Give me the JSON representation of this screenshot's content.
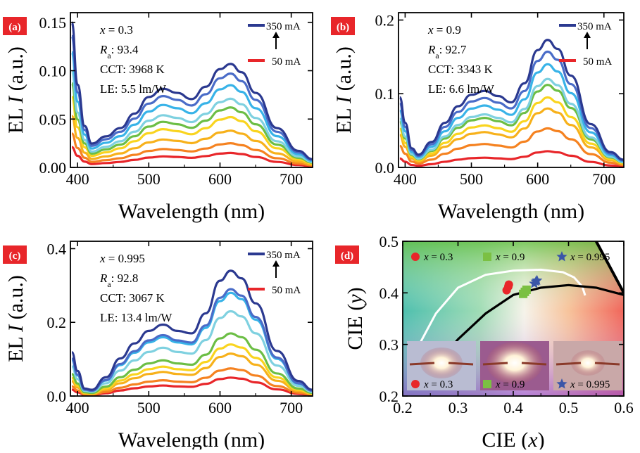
{
  "chart_data": [
    {
      "id": "a",
      "type": "line",
      "panel_label": "(a)",
      "xlabel": "Wavelength (nm)",
      "ylabel_prefix": "EL ",
      "ylabel_var": "I",
      "ylabel_suffix": " (a.u.)",
      "xlim": [
        390,
        730
      ],
      "ylim": [
        0,
        0.16
      ],
      "xticks": [
        400,
        500,
        600,
        700
      ],
      "yticks": [
        0.0,
        0.05,
        0.1,
        0.15
      ],
      "ytick_labels": [
        "0.00",
        "0.05",
        "0.10",
        "0.15"
      ],
      "annotations": {
        "x_var": "x",
        "x_val": " = 0.3",
        "ra_label": "R",
        "ra_sub": "a",
        "ra_val": ": 93.4",
        "cct": "CCT: 3968 K",
        "le": "LE: 5.5 lm/W"
      },
      "legend": {
        "high": "350 mA",
        "low": "50 mA",
        "high_color": "#2b3990",
        "low_color": "#e8262a"
      },
      "x": [
        392,
        400,
        410,
        420,
        440,
        460,
        480,
        500,
        520,
        540,
        560,
        580,
        600,
        615,
        630,
        650,
        680,
        710,
        730
      ],
      "profile": [
        1.4,
        0.8,
        0.4,
        0.23,
        0.3,
        0.38,
        0.52,
        0.68,
        0.76,
        0.72,
        0.66,
        0.78,
        0.95,
        1.0,
        0.92,
        0.72,
        0.38,
        0.16,
        0.08
      ],
      "peak_values": [
        0.015,
        0.025,
        0.038,
        0.052,
        0.062,
        0.071,
        0.085,
        0.097,
        0.107
      ],
      "colors": [
        "#e8262a",
        "#f58220",
        "#f7b11b",
        "#f9d41f",
        "#6cbe45",
        "#7fd1e0",
        "#38b3e8",
        "#4a6cc8",
        "#2b3990"
      ]
    },
    {
      "id": "b",
      "type": "line",
      "panel_label": "(b)",
      "xlabel": "Wavelength (nm)",
      "ylabel_prefix": "EL ",
      "ylabel_var": "I",
      "ylabel_suffix": " (a.u.)",
      "xlim": [
        390,
        730
      ],
      "ylim": [
        0,
        0.21
      ],
      "xticks": [
        400,
        500,
        600,
        700
      ],
      "yticks": [
        0.0,
        0.1,
        0.2
      ],
      "ytick_labels": [
        "0.0",
        "0.1",
        "0.2"
      ],
      "annotations": {
        "x_var": "x",
        "x_val": " = 0.9",
        "ra_label": "R",
        "ra_sub": "a",
        "ra_val": ": 92.7",
        "cct": "CCT: 3343 K",
        "le": "LE: 6.6 lm/W"
      },
      "legend": {
        "high": "350 mA",
        "low": "50 mA",
        "high_color": "#2b3990",
        "low_color": "#e8262a"
      },
      "x": [
        392,
        400,
        410,
        420,
        440,
        460,
        480,
        500,
        520,
        540,
        560,
        580,
        600,
        615,
        630,
        650,
        680,
        710,
        730
      ],
      "profile": [
        0.55,
        0.35,
        0.15,
        0.1,
        0.2,
        0.35,
        0.48,
        0.57,
        0.6,
        0.56,
        0.51,
        0.66,
        0.92,
        1.0,
        0.93,
        0.72,
        0.34,
        0.12,
        0.06
      ],
      "peak_values": [
        0.022,
        0.053,
        0.08,
        0.095,
        0.112,
        0.12,
        0.14,
        0.157,
        0.173
      ],
      "colors": [
        "#e8262a",
        "#f58220",
        "#f7b11b",
        "#f9d41f",
        "#6cbe45",
        "#7fd1e0",
        "#38b3e8",
        "#4a6cc8",
        "#2b3990"
      ]
    },
    {
      "id": "c",
      "type": "line",
      "panel_label": "(c)",
      "xlabel": "Wavelength (nm)",
      "ylabel_prefix": "EL ",
      "ylabel_var": "I",
      "ylabel_suffix": " (a.u.)",
      "xlim": [
        390,
        730
      ],
      "ylim": [
        0,
        0.42
      ],
      "xticks": [
        400,
        500,
        600,
        700
      ],
      "yticks": [
        0.0,
        0.2,
        0.4
      ],
      "ytick_labels": [
        "0.0",
        "0.2",
        "0.4"
      ],
      "annotations": {
        "x_var": "x",
        "x_val": " = 0.995",
        "ra_label": "R",
        "ra_sub": "a",
        "ra_val": ": 92.8",
        "cct": "CCT: 3067 K",
        "le": "LE: 13.4 lm/W"
      },
      "legend": {
        "high": "350 mA",
        "low": "50 mA",
        "high_color": "#2b3990",
        "low_color": "#e8262a"
      },
      "x": [
        392,
        400,
        410,
        420,
        440,
        460,
        480,
        500,
        520,
        540,
        560,
        580,
        600,
        615,
        630,
        650,
        680,
        710,
        730
      ],
      "profile": [
        0.35,
        0.2,
        0.06,
        0.05,
        0.15,
        0.3,
        0.42,
        0.52,
        0.57,
        0.52,
        0.5,
        0.66,
        0.92,
        1.0,
        0.94,
        0.74,
        0.36,
        0.12,
        0.05
      ],
      "peak_values": [
        0.05,
        0.075,
        0.115,
        0.14,
        0.17,
        0.23,
        0.28,
        0.29,
        0.34
      ],
      "colors": [
        "#e8262a",
        "#f58220",
        "#f7b11b",
        "#f9d41f",
        "#6cbe45",
        "#7fd1e0",
        "#38b3e8",
        "#4a6cc8",
        "#2b3990"
      ]
    },
    {
      "id": "d",
      "type": "scatter",
      "panel_label": "(d)",
      "xlabel_prefix": "CIE (",
      "xlabel_var": "x",
      "xlabel_suffix": ")",
      "ylabel_prefix": "CIE (",
      "ylabel_var": "y",
      "ylabel_suffix": ")",
      "xlim": [
        0.2,
        0.6
      ],
      "ylim": [
        0.2,
        0.5
      ],
      "xticks": [
        0.2,
        0.3,
        0.4,
        0.5,
        0.6
      ],
      "xtick_labels": [
        "0.2",
        "0.3",
        "0.4",
        "0.5",
        "0.6"
      ],
      "yticks": [
        0.2,
        0.3,
        0.4,
        0.5
      ],
      "ytick_labels": [
        "0.2",
        "0.3",
        "0.4",
        "0.5"
      ],
      "legend_top": [
        {
          "var": "x",
          "val": " = 0.3",
          "marker": "circle",
          "color": "#e8262a"
        },
        {
          "var": "x",
          "val": " = 0.9",
          "marker": "square",
          "color": "#7bc043"
        },
        {
          "var": "x",
          "val": " = 0.995",
          "marker": "star",
          "color": "#3a56a8"
        }
      ],
      "legend_bottom": [
        {
          "var": "x",
          "val": " = 0.3",
          "marker": "circle",
          "color": "#e8262a"
        },
        {
          "var": "x",
          "val": " = 0.9",
          "marker": "square",
          "color": "#7bc043"
        },
        {
          "var": "x",
          "val": " = 0.995",
          "marker": "star",
          "color": "#3a56a8"
        }
      ],
      "series": [
        {
          "marker": "circle",
          "color": "#e8262a",
          "points": [
            [
              0.388,
              0.405
            ],
            [
              0.391,
              0.412
            ],
            [
              0.392,
              0.416
            ]
          ]
        },
        {
          "marker": "square",
          "color": "#7bc043",
          "points": [
            [
              0.418,
              0.398
            ],
            [
              0.421,
              0.402
            ],
            [
              0.424,
              0.406
            ]
          ]
        },
        {
          "marker": "star",
          "color": "#3a56a8",
          "points": [
            [
              0.438,
              0.418
            ],
            [
              0.441,
              0.422
            ],
            [
              0.443,
              0.424
            ]
          ]
        }
      ],
      "planckian_locus": [
        [
          0.23,
          0.225
        ],
        [
          0.26,
          0.26
        ],
        [
          0.3,
          0.31
        ],
        [
          0.35,
          0.36
        ],
        [
          0.4,
          0.396
        ],
        [
          0.45,
          0.41
        ],
        [
          0.5,
          0.415
        ],
        [
          0.55,
          0.41
        ],
        [
          0.6,
          0.396
        ]
      ],
      "white_curve": [
        [
          0.225,
          0.23
        ],
        [
          0.23,
          0.3
        ],
        [
          0.26,
          0.36
        ],
        [
          0.3,
          0.41
        ],
        [
          0.35,
          0.435
        ],
        [
          0.4,
          0.443
        ],
        [
          0.45,
          0.445
        ],
        [
          0.49,
          0.44
        ],
        [
          0.51,
          0.43
        ],
        [
          0.525,
          0.412
        ],
        [
          0.53,
          0.395
        ]
      ],
      "spectral_edge": [
        [
          0.55,
          0.5
        ],
        [
          0.6,
          0.4
        ]
      ]
    }
  ]
}
